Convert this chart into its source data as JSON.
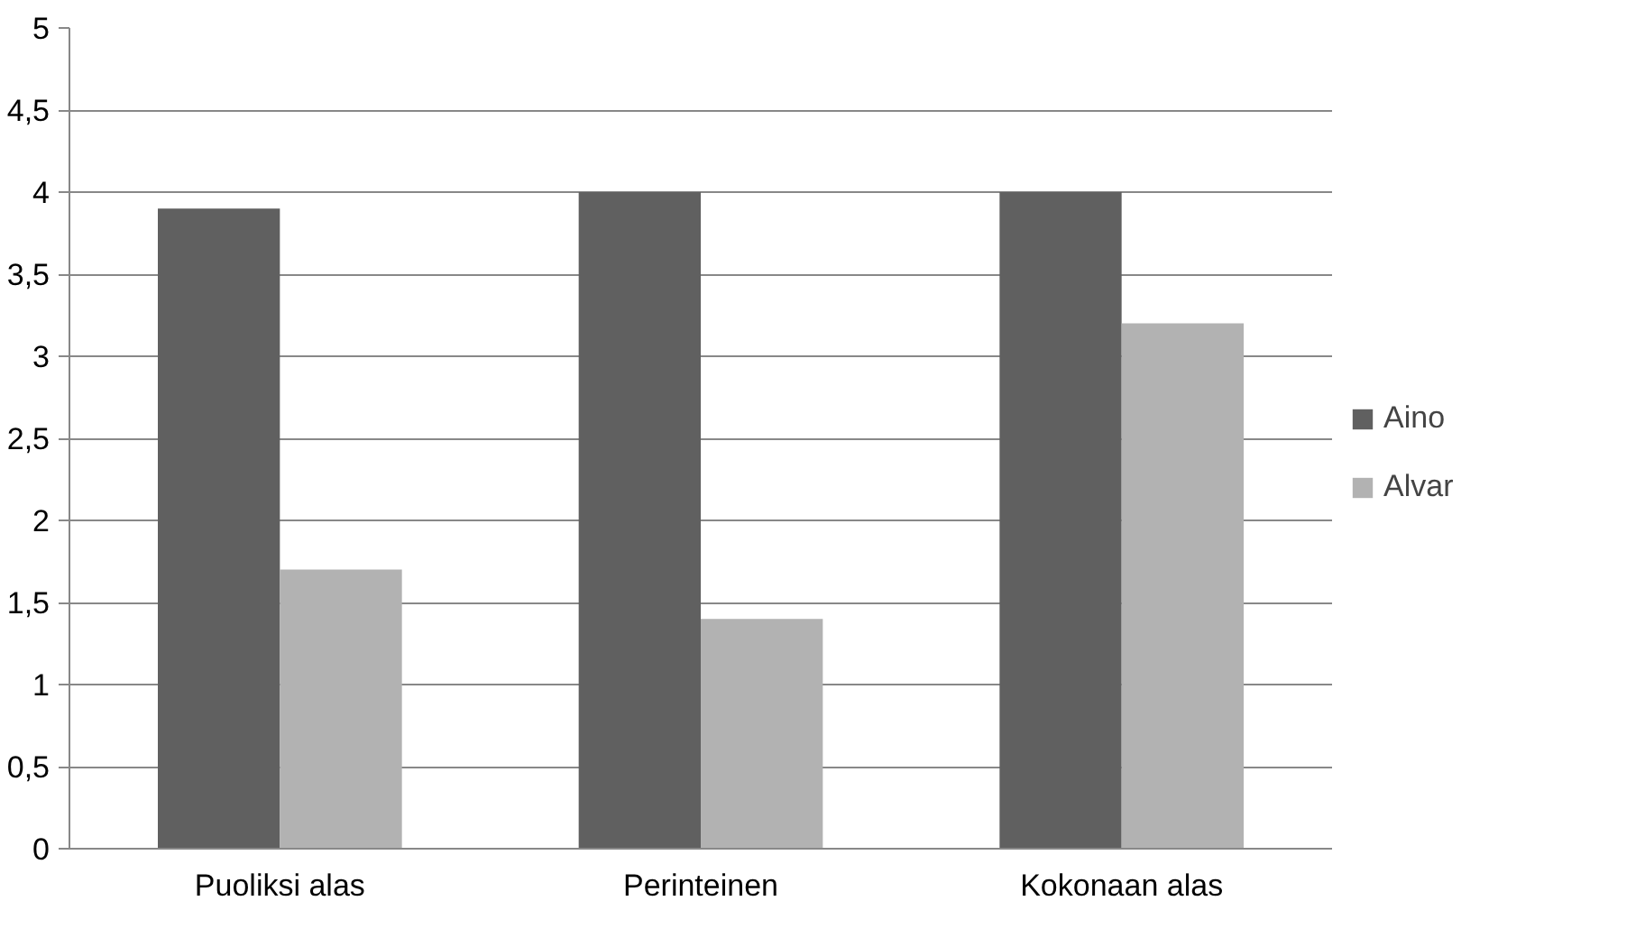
{
  "chart_data": {
    "type": "bar",
    "categories": [
      "Puoliksi alas",
      "Perinteinen",
      "Kokonaan alas"
    ],
    "series": [
      {
        "name": "Aino",
        "color": "#606060",
        "values": [
          3.9,
          4,
          4
        ]
      },
      {
        "name": "Alvar",
        "color": "#b2b2b2",
        "values": [
          1.7,
          1.4,
          3.2
        ]
      }
    ],
    "ylim": [
      0,
      5
    ],
    "yticks": [
      0,
      {
        "value": 0.5,
        "label": "0,5"
      },
      1,
      {
        "value": 1.5,
        "label": "1,5"
      },
      2,
      {
        "value": 2.5,
        "label": "2,5"
      },
      3,
      {
        "value": 3.5,
        "label": "3,5"
      },
      4,
      {
        "value": 4.5,
        "label": "4,5"
      },
      5
    ],
    "grid": "y",
    "legend": "right"
  }
}
